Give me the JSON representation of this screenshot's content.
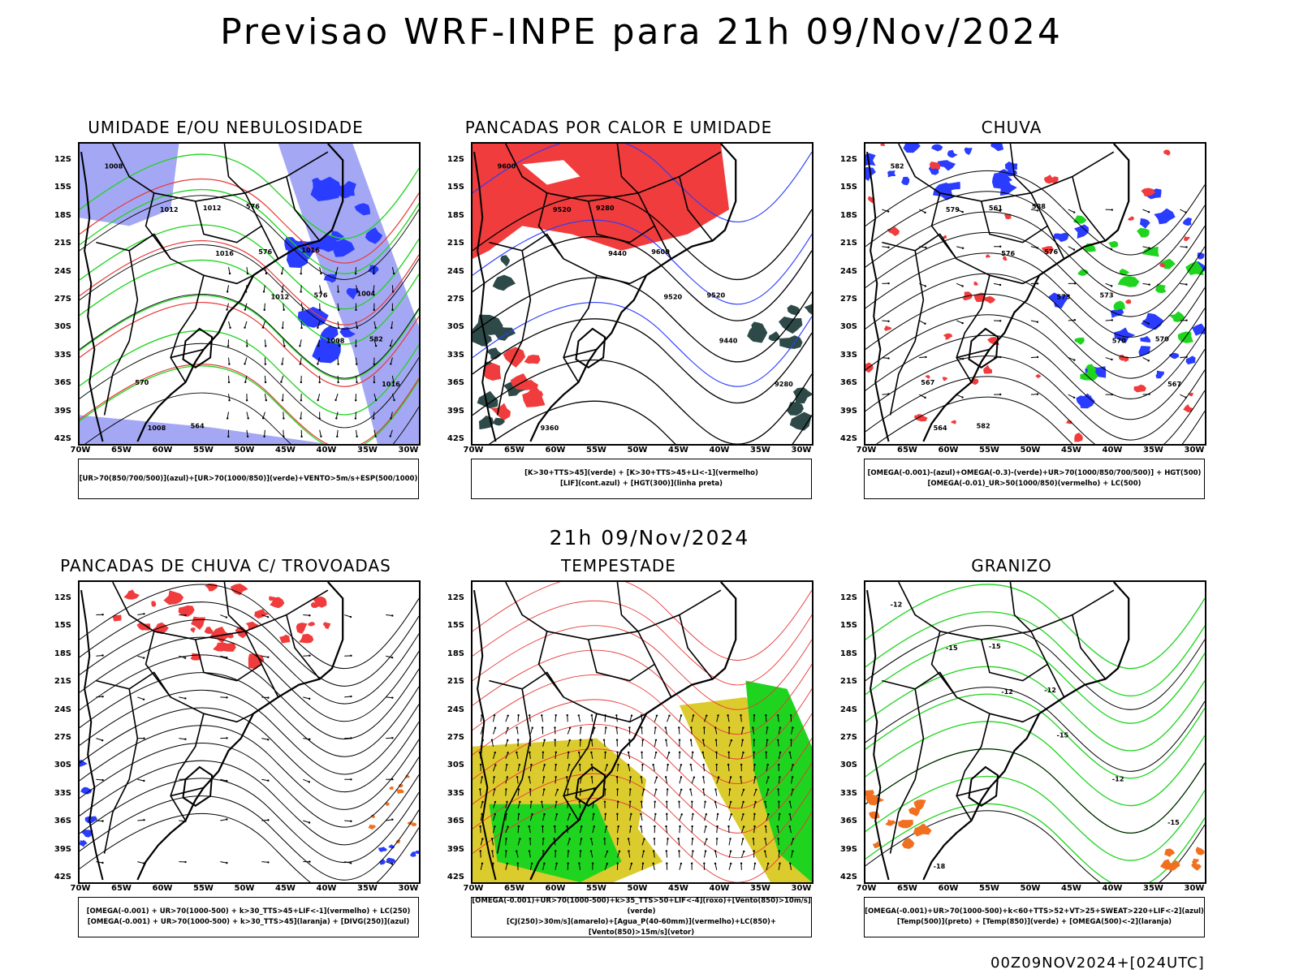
{
  "title": "Previsao WRF-INPE  para 21h 09/Nov/2024",
  "mid_date": "21h 09/Nov/2024",
  "footer": "00Z09NOV2024+[024UTC]",
  "lat_labels": [
    "12S",
    "15S",
    "18S",
    "21S",
    "24S",
    "27S",
    "30S",
    "33S",
    "36S",
    "39S",
    "42S"
  ],
  "lon_labels": [
    "70W",
    "65W",
    "60W",
    "55W",
    "50W",
    "45W",
    "40W",
    "35W",
    "30W"
  ],
  "colors": {
    "blue": "#2a3cff",
    "lightblue": "#a4a8f4",
    "green": "#1fd41f",
    "red": "#f03c3c",
    "darkteal": "#2e4a48",
    "yellow": "#dccb2c",
    "orange": "#f07020",
    "black": "#000000"
  },
  "panels": [
    {
      "id": "umidade",
      "title": "UMIDADE E/OU NEBULOSIDADE",
      "legend": [
        "[UR>70(850/700/500)](azul)+[UR>70(1000/850)](verde)+VENTO>5m/s+ESP(500/1000)"
      ],
      "contour_labels": [
        "1008",
        "1012",
        "1016",
        "1012",
        "1008",
        "1016",
        "1008",
        "1012",
        "576",
        "576",
        "582",
        "570",
        "564",
        "576",
        "1016",
        "1004"
      ]
    },
    {
      "id": "pancadas-calor",
      "title": "PANCADAS POR CALOR E UMIDADE",
      "legend": [
        "[K>30+TTS>45](verde)  +  [K>30+TTS>45+LI<-1](vermelho)",
        "[LIF](cont.azul)  +  [HGT(300)](linha preta)"
      ],
      "contour_labels": [
        "9600",
        "9520",
        "9440",
        "9520",
        "9440",
        "9280",
        "9360",
        "9280",
        "9600",
        "9520"
      ]
    },
    {
      "id": "chuva",
      "title": "CHUVA",
      "legend": [
        "[OMEGA(-0.001)-(azul)+OMEGA(-0.3)-(verde)+UR>70(1000/850/700/500)]  +  HGT(500)",
        "[OMEGA(-0.01)_UR>50(1000/850)(vermelho)  +  LC(500)"
      ],
      "contour_labels": [
        "582",
        "579",
        "576",
        "573",
        "570",
        "567",
        "564",
        "561",
        "576",
        "573",
        "570",
        "567",
        "582",
        "588"
      ]
    },
    {
      "id": "pancadas-trovoadas",
      "title": "PANCADAS DE CHUVA C/ TROVOADAS",
      "legend": [
        "[OMEGA(-0.001)  +  UR>70(1000-500)  +  k>30_TTS>45+LIF<-1](vermelho)  +  LC(250)",
        "[OMEGA(-0.001)  +  UR>70(1000-500)  +  k>30_TTS>45](laranja)  +  [DIVG(250)](azul)"
      ],
      "contour_labels": []
    },
    {
      "id": "tempestade",
      "title": "TEMPESTADE",
      "legend": [
        "[OMEGA(-0.001)+UR>70(1000-500)+k>35_TTS>50+LIF<-4](roxo)+[Vento(850)>10m/s](verde)",
        "[CJ(250)>30m/s](amarelo)+[Agua_P(40-60mm)](vermelho)+LC(850)+[Vento(850)>15m/s](vetor)"
      ],
      "contour_labels": []
    },
    {
      "id": "granizo",
      "title": "GRANIZO",
      "legend": [
        "[OMEGA(-0.001)+UR>70(1000-500)+k<60+TTS>52+VT>25+SWEAT>220+LIF<-2](azul)",
        "[Temp(500)](preto)  +  [Temp(850)](verde)  +  [OMEGA(500)<-2](laranja)"
      ],
      "contour_labels": [
        "-12",
        "-15",
        "-12",
        "-15",
        "-12",
        "-15",
        "-18",
        "-15",
        "-12"
      ]
    }
  ]
}
